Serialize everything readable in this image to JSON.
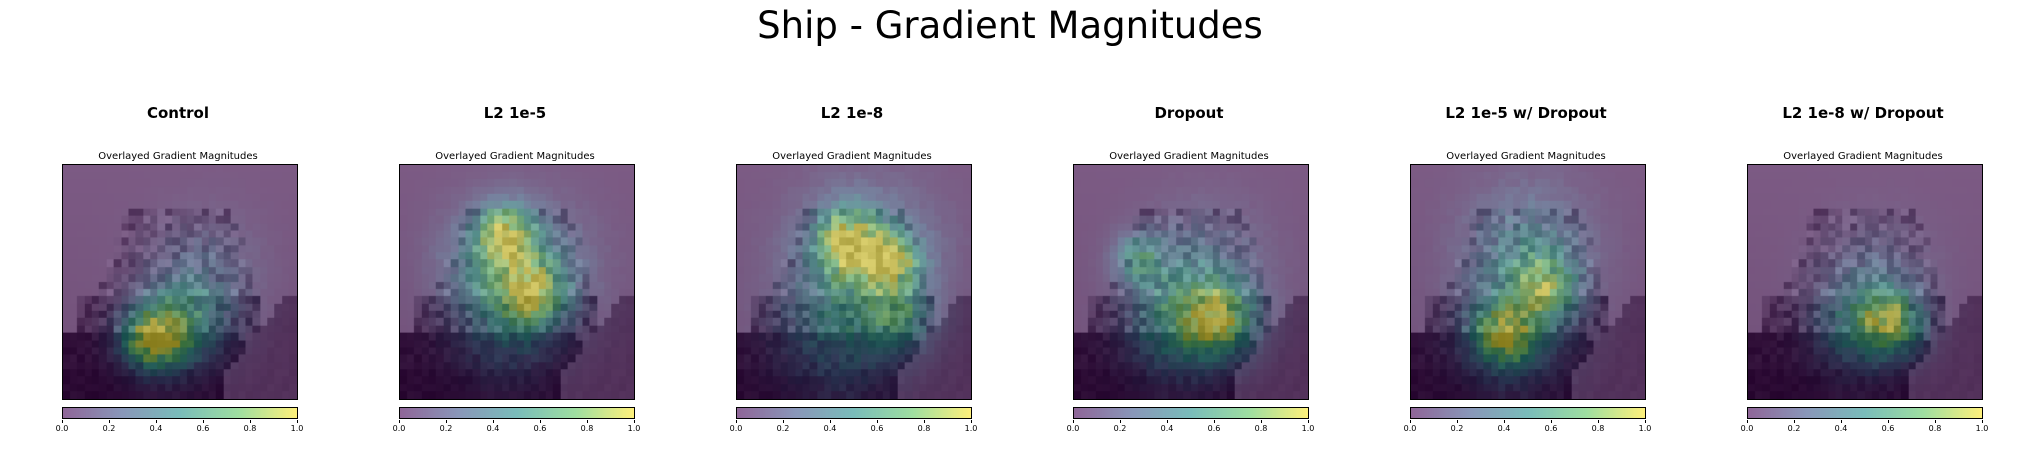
{
  "figure": {
    "suptitle": "Ship - Gradient Magnitudes"
  },
  "chart_data": [
    {
      "type": "heatmap",
      "title": "Control",
      "subtitle": "Overlayed Gradient Magnitudes",
      "colormap": "viridis",
      "overlay_alpha": 0.5,
      "value_range": [
        0.0,
        1.0
      ],
      "colorbar_ticks": [
        "0.0",
        "0.2",
        "0.4",
        "0.6",
        "0.8",
        "1.0"
      ],
      "grid": false,
      "hotspots": [
        {
          "x": 0.37,
          "y": 0.76,
          "r": 0.09,
          "v": 0.85
        },
        {
          "x": 0.45,
          "y": 0.72,
          "r": 0.12,
          "v": 0.55
        },
        {
          "x": 0.55,
          "y": 0.66,
          "r": 0.14,
          "v": 0.35
        },
        {
          "x": 0.6,
          "y": 0.45,
          "r": 0.18,
          "v": 0.25
        }
      ]
    },
    {
      "type": "heatmap",
      "title": "L2 1e-5",
      "subtitle": "Overlayed Gradient Magnitudes",
      "colormap": "viridis",
      "overlay_alpha": 0.5,
      "value_range": [
        0.0,
        1.0
      ],
      "colorbar_ticks": [
        "0.0",
        "0.2",
        "0.4",
        "0.6",
        "0.8",
        "1.0"
      ],
      "grid": false,
      "hotspots": [
        {
          "x": 0.45,
          "y": 0.28,
          "r": 0.08,
          "v": 0.9
        },
        {
          "x": 0.57,
          "y": 0.55,
          "r": 0.1,
          "v": 0.75
        },
        {
          "x": 0.55,
          "y": 0.45,
          "r": 0.2,
          "v": 0.45
        },
        {
          "x": 0.4,
          "y": 0.4,
          "r": 0.16,
          "v": 0.4
        },
        {
          "x": 0.45,
          "y": 0.72,
          "r": 0.16,
          "v": 0.3
        }
      ]
    },
    {
      "type": "heatmap",
      "title": "L2 1e-8",
      "subtitle": "Overlayed Gradient Magnitudes",
      "colormap": "viridis",
      "overlay_alpha": 0.5,
      "value_range": [
        0.0,
        1.0
      ],
      "colorbar_ticks": [
        "0.0",
        "0.2",
        "0.4",
        "0.6",
        "0.8",
        "1.0"
      ],
      "grid": false,
      "hotspots": [
        {
          "x": 0.48,
          "y": 0.32,
          "r": 0.1,
          "v": 0.95
        },
        {
          "x": 0.67,
          "y": 0.4,
          "r": 0.08,
          "v": 0.85
        },
        {
          "x": 0.55,
          "y": 0.4,
          "r": 0.22,
          "v": 0.55
        },
        {
          "x": 0.45,
          "y": 0.72,
          "r": 0.2,
          "v": 0.4
        },
        {
          "x": 0.7,
          "y": 0.65,
          "r": 0.1,
          "v": 0.5
        }
      ]
    },
    {
      "type": "heatmap",
      "title": "Dropout",
      "subtitle": "Overlayed Gradient Magnitudes",
      "colormap": "viridis",
      "overlay_alpha": 0.5,
      "value_range": [
        0.0,
        1.0
      ],
      "colorbar_ticks": [
        "0.0",
        "0.2",
        "0.4",
        "0.6",
        "0.8",
        "1.0"
      ],
      "grid": false,
      "hotspots": [
        {
          "x": 0.62,
          "y": 0.66,
          "r": 0.12,
          "v": 0.85
        },
        {
          "x": 0.45,
          "y": 0.7,
          "r": 0.16,
          "v": 0.55
        },
        {
          "x": 0.28,
          "y": 0.4,
          "r": 0.08,
          "v": 0.6
        },
        {
          "x": 0.55,
          "y": 0.45,
          "r": 0.2,
          "v": 0.35
        }
      ]
    },
    {
      "type": "heatmap",
      "title": "L2 1e-5 w/ Dropout",
      "subtitle": "Overlayed Gradient Magnitudes",
      "colormap": "viridis",
      "overlay_alpha": 0.5,
      "value_range": [
        0.0,
        1.0
      ],
      "colorbar_ticks": [
        "0.0",
        "0.2",
        "0.4",
        "0.6",
        "0.8",
        "1.0"
      ],
      "grid": false,
      "hotspots": [
        {
          "x": 0.4,
          "y": 0.74,
          "r": 0.1,
          "v": 0.85
        },
        {
          "x": 0.58,
          "y": 0.52,
          "r": 0.1,
          "v": 0.7
        },
        {
          "x": 0.5,
          "y": 0.35,
          "r": 0.2,
          "v": 0.45
        },
        {
          "x": 0.45,
          "y": 0.7,
          "r": 0.18,
          "v": 0.4
        }
      ]
    },
    {
      "type": "heatmap",
      "title": "L2 1e-8 w/ Dropout",
      "subtitle": "Overlayed Gradient Magnitudes",
      "colormap": "viridis",
      "overlay_alpha": 0.5,
      "value_range": [
        0.0,
        1.0
      ],
      "colorbar_ticks": [
        "0.0",
        "0.2",
        "0.4",
        "0.6",
        "0.8",
        "1.0"
      ],
      "grid": false,
      "hotspots": [
        {
          "x": 0.62,
          "y": 0.68,
          "r": 0.1,
          "v": 0.8
        },
        {
          "x": 0.48,
          "y": 0.7,
          "r": 0.14,
          "v": 0.5
        },
        {
          "x": 0.55,
          "y": 0.48,
          "r": 0.18,
          "v": 0.25
        }
      ]
    }
  ]
}
